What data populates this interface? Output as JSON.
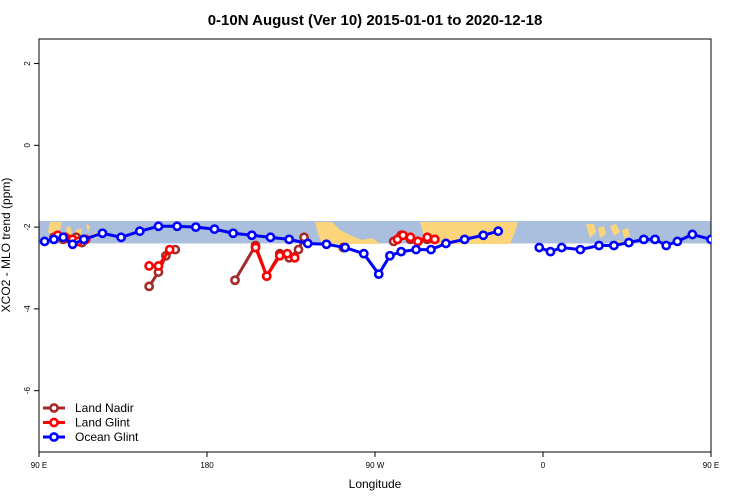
{
  "chart_data": {
    "type": "line",
    "title": "0-10N August (Ver 10)   2015-01-01 to 2020-12-18",
    "xlabel": "Longitude",
    "ylabel": "XCO2 - MLO trend (ppm)",
    "xlim": [
      90,
      450
    ],
    "ylim": [
      -7.5,
      2.6
    ],
    "x_ticks": [
      {
        "value": 90,
        "label": "90 E"
      },
      {
        "value": 180,
        "label": "180"
      },
      {
        "value": 270,
        "label": "90 W"
      },
      {
        "value": 360,
        "label": "0"
      },
      {
        "value": 450,
        "label": "90 E"
      },
      {
        "value": 540,
        "label": "180"
      }
    ],
    "y_ticks": [
      {
        "value": 2,
        "label": "2"
      },
      {
        "value": 0,
        "label": "0"
      },
      {
        "value": -2,
        "label": "-2"
      },
      {
        "value": -4,
        "label": "-4"
      },
      {
        "value": -6,
        "label": "-6"
      }
    ],
    "map_band": {
      "y_min": -2.4,
      "y_max": -1.85,
      "ocean_color": "#a9bfdd",
      "land_color": "#fcd57a"
    },
    "legend_position": "bottom-left",
    "series": [
      {
        "name": "Land Nadir",
        "color": "#a52a2a",
        "segments": [
          [
            [
              98,
              -2.25
            ],
            [
              103,
              -2.3
            ]
          ],
          [
            [
              107,
              -2.3
            ],
            [
              110,
              -2.25
            ],
            [
              113,
              -2.38
            ]
          ],
          [
            [
              149,
              -3.45
            ],
            [
              154,
              -3.1
            ],
            [
              158,
              -2.7
            ],
            [
              163,
              -2.55
            ]
          ],
          [
            [
              195,
              -3.3
            ],
            [
              206,
              -2.45
            ],
            [
              212,
              -3.2
            ],
            [
              219,
              -2.65
            ],
            [
              224,
              -2.75
            ],
            [
              229,
              -2.55
            ],
            [
              232,
              -2.25
            ]
          ],
          [
            [
              253,
              -2.5
            ]
          ],
          [
            [
              280,
              -2.35
            ],
            [
              284,
              -2.2
            ],
            [
              289,
              -2.3
            ],
            [
              293,
              -2.35
            ],
            [
              298,
              -2.3
            ],
            [
              302,
              -2.3
            ]
          ]
        ]
      },
      {
        "name": "Land Glint",
        "color": "#ff0000",
        "segments": [
          [
            [
              100,
              -2.2
            ],
            [
              104,
              -2.25
            ],
            [
              108,
              -2.3
            ],
            [
              111,
              -2.35
            ],
            [
              115,
              -2.3
            ]
          ],
          [
            [
              149,
              -2.95
            ],
            [
              154,
              -2.95
            ],
            [
              160,
              -2.55
            ]
          ],
          [
            [
              206,
              -2.5
            ],
            [
              212,
              -3.2
            ],
            [
              219,
              -2.7
            ],
            [
              223,
              -2.65
            ],
            [
              227,
              -2.75
            ]
          ],
          [
            [
              282,
              -2.3
            ],
            [
              285,
              -2.2
            ],
            [
              289,
              -2.25
            ],
            [
              293,
              -2.35
            ],
            [
              298,
              -2.25
            ],
            [
              302,
              -2.3
            ]
          ]
        ]
      },
      {
        "name": "Ocean Glint",
        "color": "#0000ff",
        "segments": [
          [
            [
              93,
              -2.35
            ],
            [
              98,
              -2.3
            ],
            [
              103,
              -2.25
            ],
            [
              108,
              -2.42
            ],
            [
              114,
              -2.3
            ],
            [
              124,
              -2.15
            ],
            [
              134,
              -2.25
            ],
            [
              144,
              -2.1
            ],
            [
              154,
              -1.98
            ],
            [
              164,
              -1.98
            ],
            [
              174,
              -2.0
            ],
            [
              184,
              -2.05
            ],
            [
              194,
              -2.15
            ],
            [
              204,
              -2.2
            ],
            [
              214,
              -2.25
            ],
            [
              224,
              -2.3
            ],
            [
              234,
              -2.4
            ],
            [
              244,
              -2.42
            ],
            [
              254,
              -2.5
            ],
            [
              264,
              -2.65
            ],
            [
              272,
              -3.15
            ],
            [
              278,
              -2.7
            ],
            [
              284,
              -2.6
            ],
            [
              292,
              -2.55
            ],
            [
              300,
              -2.55
            ],
            [
              308,
              -2.4
            ],
            [
              318,
              -2.3
            ],
            [
              328,
              -2.2
            ],
            [
              336,
              -2.1
            ]
          ],
          [
            [
              358,
              -2.5
            ],
            [
              364,
              -2.6
            ],
            [
              370,
              -2.5
            ],
            [
              380,
              -2.55
            ],
            [
              390,
              -2.45
            ],
            [
              398,
              -2.45
            ],
            [
              406,
              -2.38
            ],
            [
              414,
              -2.3
            ],
            [
              420,
              -2.3
            ],
            [
              426,
              -2.45
            ],
            [
              432,
              -2.35
            ],
            [
              440,
              -2.18
            ],
            [
              450,
              -2.3
            ],
            [
              460,
              -2.15
            ],
            [
              470,
              -2.0
            ],
            [
              480,
              -1.98
            ]
          ]
        ]
      }
    ]
  }
}
